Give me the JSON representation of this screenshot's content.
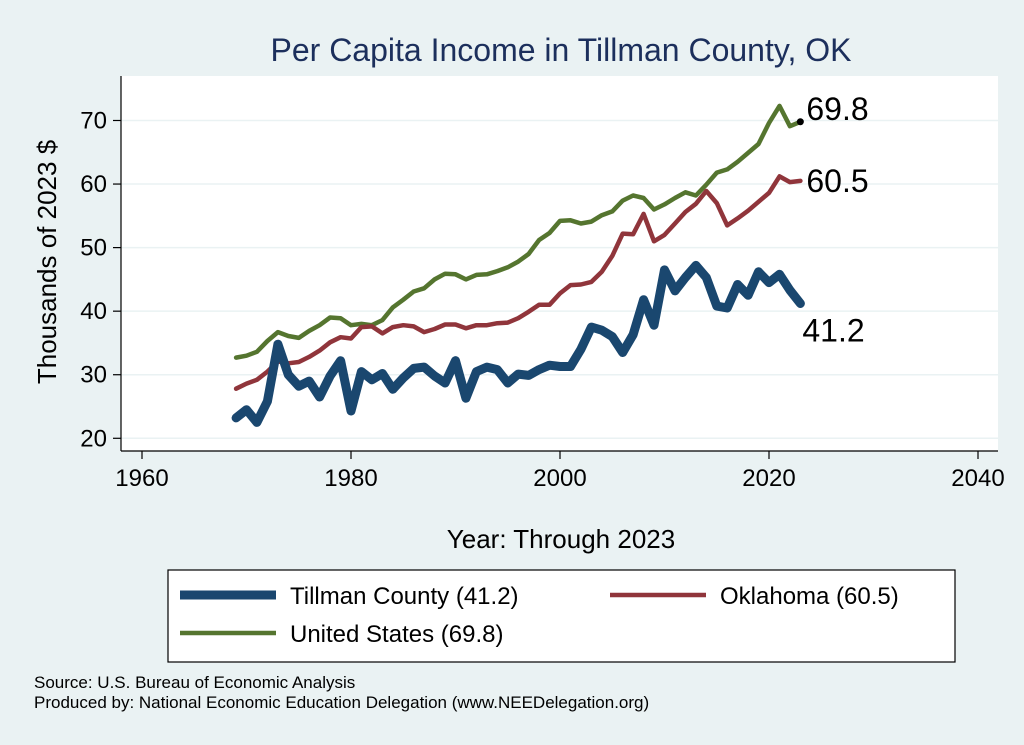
{
  "chart_data": {
    "type": "line",
    "title": "Per Capita Income in Tillman County, OK",
    "xlabel": "Year: Through 2023",
    "ylabel": "Thousands of 2023 $",
    "xlim": [
      1958,
      2042
    ],
    "ylim": [
      18,
      77
    ],
    "xticks": [
      1960,
      1980,
      2000,
      2020,
      2040
    ],
    "yticks": [
      20,
      30,
      40,
      50,
      60,
      70
    ],
    "grid": true,
    "legend_position": "bottom",
    "series": [
      {
        "name": "Tillman County",
        "legend_label": "Tillman County (41.2)",
        "end_label": "41.2",
        "color": "#1a476f",
        "x": [
          1969,
          1970,
          1971,
          1972,
          1973,
          1974,
          1975,
          1976,
          1977,
          1978,
          1979,
          1980,
          1981,
          1982,
          1983,
          1984,
          1985,
          1986,
          1987,
          1988,
          1989,
          1990,
          1991,
          1992,
          1993,
          1994,
          1995,
          1996,
          1997,
          1998,
          1999,
          2000,
          2001,
          2002,
          2003,
          2004,
          2005,
          2006,
          2007,
          2008,
          2009,
          2010,
          2011,
          2012,
          2013,
          2014,
          2015,
          2016,
          2017,
          2018,
          2019,
          2020,
          2021,
          2022,
          2023
        ],
        "values": [
          23.2,
          24.5,
          22.5,
          25.8,
          34.8,
          30.0,
          28.2,
          29.0,
          26.5,
          29.8,
          32.2,
          24.3,
          30.5,
          29.2,
          30.2,
          27.7,
          29.5,
          31.0,
          31.2,
          29.8,
          28.7,
          32.2,
          26.3,
          30.5,
          31.2,
          30.8,
          28.7,
          30.1,
          29.9,
          30.8,
          31.5,
          31.3,
          31.3,
          34.0,
          37.5,
          37.0,
          36.0,
          33.5,
          36.3,
          41.8,
          37.8,
          46.5,
          43.2,
          45.3,
          47.2,
          45.3,
          40.8,
          40.5,
          44.2,
          42.5,
          46.2,
          44.5,
          45.8,
          43.3,
          41.2
        ]
      },
      {
        "name": "Oklahoma",
        "legend_label": "Oklahoma (60.5)",
        "end_label": "60.5",
        "color": "#90353b",
        "x": [
          1969,
          1970,
          1971,
          1972,
          1973,
          1974,
          1975,
          1976,
          1977,
          1978,
          1979,
          1980,
          1981,
          1982,
          1983,
          1984,
          1985,
          1986,
          1987,
          1988,
          1989,
          1990,
          1991,
          1992,
          1993,
          1994,
          1995,
          1996,
          1997,
          1998,
          1999,
          2000,
          2001,
          2002,
          2003,
          2004,
          2005,
          2006,
          2007,
          2008,
          2009,
          2010,
          2011,
          2012,
          2013,
          2014,
          2015,
          2016,
          2017,
          2018,
          2019,
          2020,
          2021,
          2022,
          2023
        ],
        "values": [
          27.8,
          28.6,
          29.2,
          30.5,
          32.1,
          31.8,
          32.0,
          32.8,
          33.8,
          35.1,
          35.9,
          35.7,
          37.5,
          37.6,
          36.5,
          37.5,
          37.8,
          37.6,
          36.7,
          37.2,
          37.9,
          37.9,
          37.3,
          37.8,
          37.8,
          38.1,
          38.2,
          38.9,
          39.9,
          41.0,
          41.0,
          42.8,
          44.1,
          44.2,
          44.6,
          46.2,
          48.7,
          52.2,
          52.1,
          55.3,
          51.0,
          52.0,
          53.8,
          55.6,
          56.9,
          58.9,
          57.0,
          53.5,
          54.6,
          55.8,
          57.2,
          58.6,
          61.2,
          60.3,
          60.5
        ]
      },
      {
        "name": "United States",
        "legend_label": "United States (69.8)",
        "end_label": "69.8",
        "color": "#55752f",
        "x": [
          1969,
          1970,
          1971,
          1972,
          1973,
          1974,
          1975,
          1976,
          1977,
          1978,
          1979,
          1980,
          1981,
          1982,
          1983,
          1984,
          1985,
          1986,
          1987,
          1988,
          1989,
          1990,
          1991,
          1992,
          1993,
          1994,
          1995,
          1996,
          1997,
          1998,
          1999,
          2000,
          2001,
          2002,
          2003,
          2004,
          2005,
          2006,
          2007,
          2008,
          2009,
          2010,
          2011,
          2012,
          2013,
          2014,
          2015,
          2016,
          2017,
          2018,
          2019,
          2020,
          2021,
          2022,
          2023
        ],
        "values": [
          32.7,
          33.0,
          33.6,
          35.3,
          36.7,
          36.1,
          35.8,
          36.9,
          37.8,
          39.0,
          38.9,
          37.8,
          38.0,
          37.8,
          38.6,
          40.6,
          41.8,
          43.1,
          43.6,
          45.0,
          45.9,
          45.8,
          45.0,
          45.7,
          45.8,
          46.3,
          46.9,
          47.8,
          49.0,
          51.2,
          52.3,
          54.2,
          54.3,
          53.8,
          54.1,
          55.1,
          55.7,
          57.4,
          58.2,
          57.8,
          56.0,
          56.8,
          57.8,
          58.7,
          58.2,
          59.9,
          61.8,
          62.3,
          63.5,
          64.9,
          66.3,
          69.6,
          72.3,
          69.1,
          69.8
        ]
      }
    ]
  },
  "footer": {
    "source": "Source: U.S. Bureau of Economic Analysis",
    "producer": "Produced by: National Economic Education Delegation (www.NEEDelegation.org)"
  }
}
